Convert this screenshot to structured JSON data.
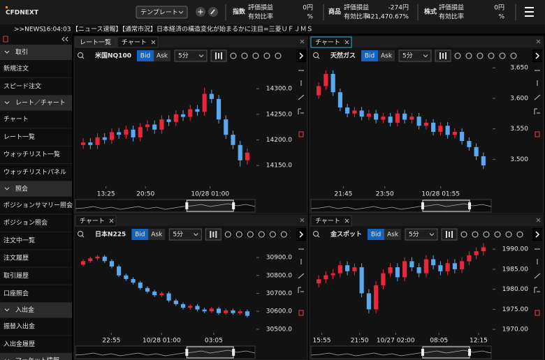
{
  "header": {
    "logo": "CFDNEXT",
    "template": "テンプレート",
    "accounts": [
      {
        "label": "指数",
        "pl_label": "評価損益",
        "pl": "0円",
        "ratio_label": "有効比率",
        "ratio": "%"
      },
      {
        "label": "商品",
        "pl_label": "評価損益",
        "pl": "-274円",
        "ratio_label": "有効比率",
        "ratio": "421,470.67%"
      },
      {
        "label": "株式",
        "pl_label": "評価損益",
        "pl": "0円",
        "ratio_label": "有効比率",
        "ratio": "%"
      }
    ]
  },
  "news": {
    "tag": ">>NEWS",
    "time": "16:04:03",
    "text": "【ニュース速報】【通常市況】日本経済の構造変化が始まるかに注目=三菱ＵＦＪＭＳ"
  },
  "sidebar": [
    {
      "title": "取引",
      "items": [
        "新規注文",
        "スピード注文"
      ]
    },
    {
      "title": "レート／チャート",
      "items": [
        "チャート",
        "レート一覧",
        "ウォッチリスト一覧",
        "ウォッチリストパネル"
      ]
    },
    {
      "title": "照会",
      "items": [
        "ポジションサマリー照会",
        "ポジション照会",
        "注文中一覧",
        "注文履歴",
        "取引履歴",
        "口座照会"
      ]
    },
    {
      "title": "入出金",
      "items": [
        "振替入出金",
        "入出金履歴"
      ]
    },
    {
      "title": "マーケット情報",
      "items": []
    }
  ],
  "panels": [
    {
      "tabs": [
        "レート一覧",
        "チャート"
      ],
      "symbol": "米国NQ100",
      "bid": "Bid",
      "ask": "Ask",
      "interval": "5分",
      "chart": {
        "type": "candlestick",
        "up_color": "#e8283a",
        "down_color": "#5aa9f0",
        "ylim": [
          14112,
          14348
        ],
        "yticks": [
          {
            "value": 14300,
            "label": "14300.0"
          },
          {
            "value": 14250,
            "label": "14250.0"
          },
          {
            "value": 14200,
            "label": "14200.0"
          },
          {
            "value": 14150,
            "label": "14150.0"
          }
        ],
        "xticks": [
          "13:25",
          "20:50",
          "10/28 01:00"
        ],
        "ohlc": [
          [
            14190,
            14203,
            14182,
            14195
          ],
          [
            14195,
            14203,
            14182,
            14190
          ],
          [
            14190,
            14213,
            14182,
            14205
          ],
          [
            14205,
            14213,
            14192,
            14200
          ],
          [
            14200,
            14223,
            14192,
            14215
          ],
          [
            14215,
            14223,
            14202,
            14210
          ],
          [
            14210,
            14228,
            14202,
            14220
          ],
          [
            14220,
            14228,
            14197,
            14205
          ],
          [
            14205,
            14233,
            14197,
            14225
          ],
          [
            14225,
            14238,
            14217,
            14230
          ],
          [
            14230,
            14238,
            14212,
            14220
          ],
          [
            14220,
            14248,
            14212,
            14240
          ],
          [
            14240,
            14248,
            14227,
            14235
          ],
          [
            14235,
            14258,
            14227,
            14250
          ],
          [
            14250,
            14258,
            14237,
            14245
          ],
          [
            14245,
            14268,
            14237,
            14260
          ],
          [
            14260,
            14268,
            14247,
            14255
          ],
          [
            14255,
            14302,
            14247,
            14290
          ],
          [
            14290,
            14298,
            14272,
            14280
          ],
          [
            14280,
            14288,
            14232,
            14240
          ],
          [
            14240,
            14248,
            14202,
            14210
          ],
          [
            14210,
            14218,
            14182,
            14190
          ],
          [
            14190,
            14198,
            14148,
            14160
          ],
          [
            14160,
            14183,
            14152,
            14175
          ]
        ]
      }
    },
    {
      "tabs": [
        "チャート"
      ],
      "symbol": "天然ガス",
      "bid": "Bid",
      "ask": "Ask",
      "interval": "5分",
      "chart": {
        "type": "candlestick",
        "up_color": "#e8283a",
        "down_color": "#5aa9f0",
        "ylim": [
          3.458,
          3.656
        ],
        "yticks": [
          {
            "value": 3.65,
            "label": "3.650"
          },
          {
            "value": 3.6,
            "label": "3.600"
          },
          {
            "value": 3.55,
            "label": "3.550"
          },
          {
            "value": 3.5,
            "label": "3.500"
          }
        ],
        "xticks": [
          "21:45",
          "23:50",
          "10/28 01:55"
        ],
        "ohlc": [
          [
            3.605,
            3.626,
            3.599,
            3.62
          ],
          [
            3.62,
            3.646,
            3.614,
            3.64
          ],
          [
            3.64,
            3.646,
            3.604,
            3.61
          ],
          [
            3.61,
            3.616,
            3.579,
            3.585
          ],
          [
            3.585,
            3.591,
            3.569,
            3.575
          ],
          [
            3.575,
            3.586,
            3.569,
            3.58
          ],
          [
            3.58,
            3.586,
            3.564,
            3.57
          ],
          [
            3.57,
            3.581,
            3.564,
            3.575
          ],
          [
            3.575,
            3.581,
            3.559,
            3.565
          ],
          [
            3.565,
            3.576,
            3.559,
            3.57
          ],
          [
            3.57,
            3.576,
            3.554,
            3.56
          ],
          [
            3.56,
            3.581,
            3.554,
            3.575
          ],
          [
            3.575,
            3.581,
            3.559,
            3.565
          ],
          [
            3.565,
            3.576,
            3.559,
            3.57
          ],
          [
            3.57,
            3.576,
            3.549,
            3.555
          ],
          [
            3.555,
            3.566,
            3.549,
            3.56
          ],
          [
            3.56,
            3.566,
            3.539,
            3.545
          ],
          [
            3.545,
            3.561,
            3.539,
            3.555
          ],
          [
            3.555,
            3.561,
            3.534,
            3.54
          ],
          [
            3.54,
            3.551,
            3.534,
            3.545
          ],
          [
            3.545,
            3.551,
            3.524,
            3.53
          ],
          [
            3.53,
            3.536,
            3.514,
            3.52
          ],
          [
            3.52,
            3.526,
            3.499,
            3.505
          ],
          [
            3.505,
            3.511,
            3.484,
            3.49
          ]
        ]
      }
    },
    {
      "tabs": [
        "チャート"
      ],
      "symbol": "日本N225",
      "bid": "Bid",
      "ask": "Ask",
      "interval": "5分",
      "chart": {
        "type": "candlestick",
        "up_color": "#e8283a",
        "down_color": "#5aa9f0",
        "ylim": [
          30488,
          30982
        ],
        "yticks": [
          {
            "value": 30900,
            "label": "30900.0"
          },
          {
            "value": 30800,
            "label": "30800.0"
          },
          {
            "value": 30700,
            "label": "30700.0"
          },
          {
            "value": 30600,
            "label": "30600.0"
          },
          {
            "value": 30500,
            "label": "30500.0"
          }
        ],
        "xticks": [
          "22:55",
          "10/28 01:00",
          "03:05"
        ],
        "ohlc": [
          [
            30860,
            30890,
            30850,
            30880
          ],
          [
            30880,
            30905,
            30870,
            30895
          ],
          [
            30895,
            30915,
            30885,
            30905
          ],
          [
            30905,
            30915,
            30870,
            30880
          ],
          [
            30880,
            30890,
            30840,
            30850
          ],
          [
            30850,
            30860,
            30790,
            30800
          ],
          [
            30800,
            30810,
            30770,
            30780
          ],
          [
            30780,
            30790,
            30750,
            30760
          ],
          [
            30760,
            30770,
            30720,
            30730
          ],
          [
            30730,
            30740,
            30700,
            30710
          ],
          [
            30710,
            30720,
            30680,
            30690
          ],
          [
            30690,
            30710,
            30680,
            30700
          ],
          [
            30700,
            30710,
            30650,
            30660
          ],
          [
            30660,
            30670,
            30630,
            30640
          ],
          [
            30640,
            30650,
            30610,
            30620
          ],
          [
            30620,
            30640,
            30610,
            30630
          ],
          [
            30630,
            30640,
            30600,
            30610
          ],
          [
            30610,
            30620,
            30590,
            30600
          ],
          [
            30600,
            30625,
            30590,
            30615
          ],
          [
            30615,
            30625,
            30580,
            30590
          ],
          [
            30590,
            30615,
            30580,
            30605
          ],
          [
            30605,
            30615,
            30580,
            30590
          ],
          [
            30590,
            30610,
            30580,
            30600
          ],
          [
            30600,
            30610,
            30565,
            30575
          ]
        ]
      }
    },
    {
      "tabs": [
        "チャート"
      ],
      "symbol": "金スポット",
      "bid": "Bid",
      "ask": "Ask",
      "interval": "5分",
      "chart": {
        "type": "candlestick",
        "up_color": "#e8283a",
        "down_color": "#5aa9f0",
        "ylim": [
          1969.5,
          1991.6
        ],
        "yticks": [
          {
            "value": 1990,
            "label": "1990.00"
          },
          {
            "value": 1985,
            "label": "1985.00"
          },
          {
            "value": 1980,
            "label": "1980.00"
          },
          {
            "value": 1975,
            "label": "1975.00"
          },
          {
            "value": 1970,
            "label": "1970.00"
          }
        ],
        "xticks": [
          "15:55",
          "21:50",
          "10/27 02:00",
          "08:05",
          "12:15"
        ],
        "ohlc": [
          [
            1981.5,
            1983.5,
            1980.5,
            1982.5
          ],
          [
            1982.5,
            1984.5,
            1981.5,
            1983.5
          ],
          [
            1983.5,
            1985,
            1982.5,
            1984
          ],
          [
            1984,
            1987,
            1983,
            1986
          ],
          [
            1986,
            1987,
            1983.5,
            1984.5
          ],
          [
            1984.5,
            1986.5,
            1983.5,
            1985.5
          ],
          [
            1985.5,
            1986.5,
            1978,
            1979
          ],
          [
            1979,
            1980,
            1974,
            1975
          ],
          [
            1975,
            1982,
            1974,
            1981
          ],
          [
            1981,
            1985,
            1980,
            1984
          ],
          [
            1984,
            1986.5,
            1983,
            1985.5
          ],
          [
            1985.5,
            1986.5,
            1982,
            1983
          ],
          [
            1983,
            1988,
            1982,
            1987
          ],
          [
            1987,
            1988,
            1984.5,
            1985.5
          ],
          [
            1985.5,
            1986.5,
            1983,
            1984
          ],
          [
            1984,
            1988.5,
            1983,
            1987.5
          ],
          [
            1987.5,
            1988.5,
            1985,
            1986
          ],
          [
            1986,
            1987,
            1983.5,
            1984.5
          ],
          [
            1984.5,
            1987.5,
            1983.5,
            1986.5
          ],
          [
            1986.5,
            1987.5,
            1984,
            1985
          ],
          [
            1985,
            1988,
            1984,
            1987
          ],
          [
            1987,
            1989.5,
            1986,
            1988.5
          ],
          [
            1988.5,
            1990.5,
            1987.5,
            1989.5
          ],
          [
            1989.5,
            1991.5,
            1988.5,
            1990.5
          ]
        ]
      }
    }
  ]
}
